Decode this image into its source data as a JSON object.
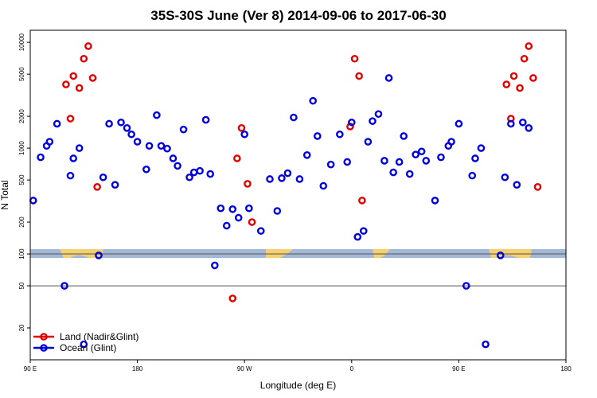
{
  "chart_data": {
    "type": "scatter",
    "title": "35S-30S June (Ver 8)   2014-09-06 to 2017-06-30",
    "xlabel": "Longitude (deg E)",
    "ylabel": "N Total",
    "xlim": [
      90,
      450
    ],
    "ylim": [
      10,
      13000
    ],
    "yscale": "log",
    "x_ticks": [
      {
        "value": 90,
        "label": "90 E"
      },
      {
        "value": 180,
        "label": "180"
      },
      {
        "value": 270,
        "label": "90 W"
      },
      {
        "value": 360,
        "label": "0"
      },
      {
        "value": 450,
        "label": "90 E"
      },
      {
        "value": 540,
        "label": "180"
      }
    ],
    "x_ticks_display": [
      {
        "value": 90,
        "label": "90 E"
      },
      {
        "value": 162,
        "label": "180"
      },
      {
        "value": 234,
        "label": "90 W"
      },
      {
        "value": 306,
        "label": "0"
      },
      {
        "value": 378,
        "label": "90 E"
      },
      {
        "value": 450,
        "label": "180"
      }
    ],
    "y_ticks": [
      {
        "value": 20,
        "label": "20"
      },
      {
        "value": 50,
        "label": "50"
      },
      {
        "value": 100,
        "label": "100"
      },
      {
        "value": 200,
        "label": "200"
      },
      {
        "value": 500,
        "label": "500"
      },
      {
        "value": 1000,
        "label": "1000"
      },
      {
        "value": 2000,
        "label": "2000"
      },
      {
        "value": 5000,
        "label": "5000"
      },
      {
        "value": 10000,
        "label": "10000"
      }
    ],
    "reference_lines": [
      {
        "axis": "y",
        "value": 100,
        "color": "#555555"
      },
      {
        "axis": "y",
        "value": 50,
        "color": "#555555"
      }
    ],
    "legend": {
      "placement": "bottom-left",
      "entries": [
        {
          "label": "Land (Nadir&Glint)",
          "color": "#e00000"
        },
        {
          "label": "Ocean (Glint)",
          "color": "#0000dd"
        }
      ]
    },
    "series": [
      {
        "name": "Land (Nadir&Glint)",
        "color": "#e00000",
        "points": [
          [
            114,
            4000
          ],
          [
            117,
            1900
          ],
          [
            119,
            4800
          ],
          [
            123,
            3700
          ],
          [
            126,
            7000
          ],
          [
            129,
            9200
          ],
          [
            132,
            4600
          ],
          [
            135,
            430
          ],
          [
            226,
            38
          ],
          [
            229,
            800
          ],
          [
            232,
            1550
          ],
          [
            236,
            460
          ],
          [
            239,
            200
          ],
          [
            305,
            1600
          ],
          [
            308,
            7000
          ],
          [
            311,
            4800
          ],
          [
            313,
            320
          ],
          [
            410,
            4000
          ],
          [
            413,
            1900
          ],
          [
            415,
            4800
          ],
          [
            419,
            3700
          ],
          [
            422,
            7000
          ],
          [
            425,
            9200
          ],
          [
            428,
            4600
          ],
          [
            431,
            430
          ]
        ]
      },
      {
        "name": "Ocean (Glint)",
        "color": "#0000dd",
        "points": [
          [
            92,
            320
          ],
          [
            97,
            820
          ],
          [
            101,
            1050
          ],
          [
            103,
            1150
          ],
          [
            108,
            1700
          ],
          [
            113,
            50
          ],
          [
            117,
            550
          ],
          [
            119,
            800
          ],
          [
            123,
            1000
          ],
          [
            126,
            14
          ],
          [
            136,
            97
          ],
          [
            139,
            530
          ],
          [
            143,
            1700
          ],
          [
            147,
            450
          ],
          [
            151,
            1750
          ],
          [
            155,
            1550
          ],
          [
            158,
            1350
          ],
          [
            162,
            1150
          ],
          [
            168,
            630
          ],
          [
            170,
            1050
          ],
          [
            175,
            2050
          ],
          [
            178,
            1050
          ],
          [
            182,
            990
          ],
          [
            186,
            800
          ],
          [
            189,
            680
          ],
          [
            193,
            1500
          ],
          [
            197,
            530
          ],
          [
            200,
            590
          ],
          [
            204,
            610
          ],
          [
            208,
            1850
          ],
          [
            211,
            570
          ],
          [
            214,
            78
          ],
          [
            218,
            270
          ],
          [
            222,
            185
          ],
          [
            226,
            265
          ],
          [
            230,
            220
          ],
          [
            234,
            1350
          ],
          [
            237,
            270
          ],
          [
            245,
            165
          ],
          [
            251,
            510
          ],
          [
            256,
            255
          ],
          [
            259,
            520
          ],
          [
            263,
            580
          ],
          [
            267,
            1950
          ],
          [
            271,
            510
          ],
          [
            276,
            860
          ],
          [
            280,
            2800
          ],
          [
            283,
            1300
          ],
          [
            287,
            440
          ],
          [
            292,
            700
          ],
          [
            298,
            1350
          ],
          [
            303,
            740
          ],
          [
            306,
            1750
          ],
          [
            310,
            145
          ],
          [
            314,
            165
          ],
          [
            317,
            1150
          ],
          [
            320,
            1800
          ],
          [
            324,
            2100
          ],
          [
            328,
            760
          ],
          [
            331,
            4600
          ],
          [
            334,
            590
          ],
          [
            338,
            740
          ],
          [
            341,
            1300
          ],
          [
            345,
            570
          ],
          [
            349,
            870
          ],
          [
            353,
            930
          ],
          [
            356,
            760
          ],
          [
            362,
            320
          ],
          [
            366,
            820
          ],
          [
            371,
            1050
          ],
          [
            373,
            1150
          ],
          [
            378,
            1700
          ],
          [
            383,
            50
          ],
          [
            387,
            550
          ],
          [
            389,
            800
          ],
          [
            393,
            1000
          ],
          [
            396,
            14
          ],
          [
            406,
            97
          ],
          [
            409,
            530
          ],
          [
            413,
            1700
          ],
          [
            417,
            450
          ],
          [
            421,
            1750
          ],
          [
            425,
            1550
          ]
        ]
      }
    ]
  }
}
